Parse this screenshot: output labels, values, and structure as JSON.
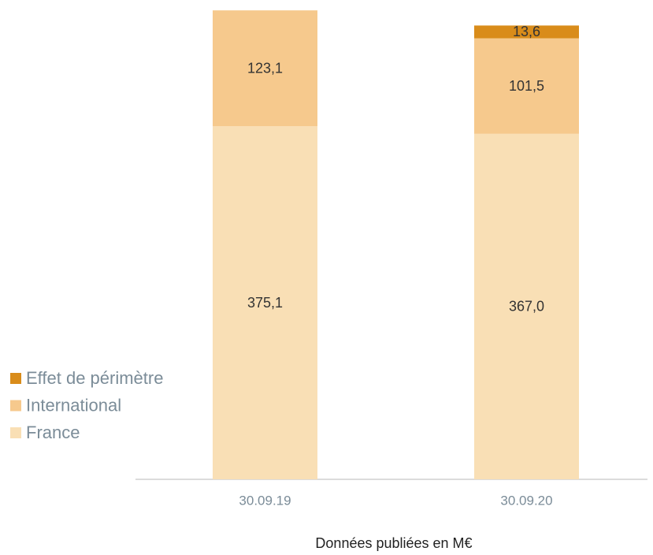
{
  "chart_data": {
    "type": "stacked_bar",
    "subtitle": "Données publiées en M€",
    "categories": [
      "30.09.19",
      "30.09.20"
    ],
    "series": [
      {
        "name": "France",
        "color": "#f9dfb5",
        "values": [
          375.1,
          367.0
        ],
        "value_labels": [
          "375,1",
          "367,0"
        ]
      },
      {
        "name": "International",
        "color": "#f6c98d",
        "values": [
          123.1,
          101.5
        ],
        "value_labels": [
          "123,1",
          "101,5"
        ]
      },
      {
        "name": "Effet de périmètre",
        "color": "#d98c1a",
        "values": [
          null,
          13.6
        ],
        "value_labels": [
          null,
          "13,6"
        ]
      }
    ],
    "ylim": [
      0,
      500
    ],
    "legend": "left"
  }
}
